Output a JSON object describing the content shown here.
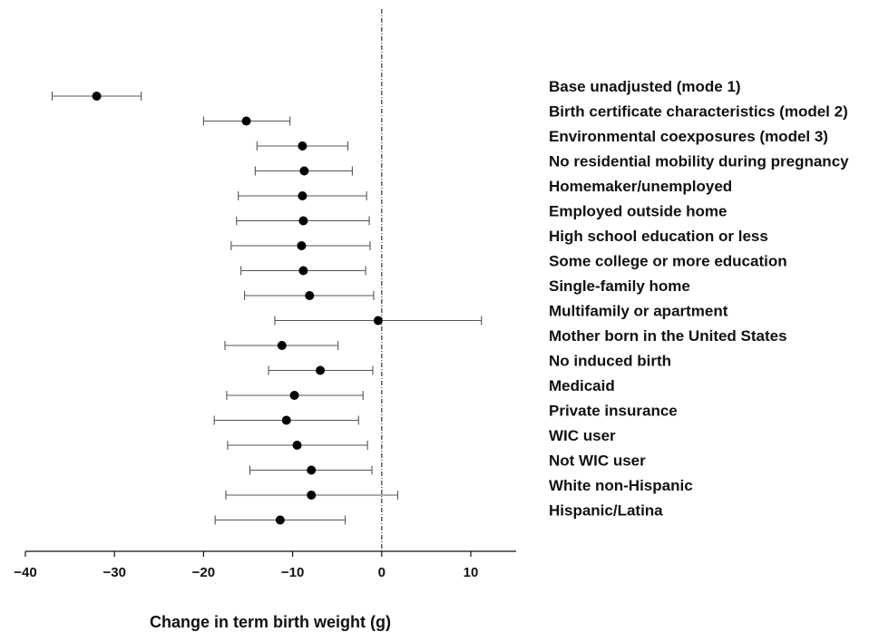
{
  "chart_data": {
    "type": "forest",
    "xlabel": "Change in term birth weight (g)",
    "xlim": [
      -40,
      15
    ],
    "xticks": [
      -40,
      -30,
      -20,
      -10,
      0,
      10
    ],
    "xtick_labels": [
      "−40",
      "−30",
      "−20",
      "−10",
      "0",
      "10"
    ],
    "reference_line": 0,
    "rows": [
      {
        "label": "Base unadjusted (mode 1)",
        "estimate": -32.0,
        "lower": -37.0,
        "upper": -27.0
      },
      {
        "label": "Birth certificate characteristics (model 2)",
        "estimate": -15.2,
        "lower": -20.0,
        "upper": -10.3
      },
      {
        "label": "Environmental coexposures (model 3)",
        "estimate": -8.9,
        "lower": -14.0,
        "upper": -3.8
      },
      {
        "label": "No residential mobility during pregnancy",
        "estimate": -8.7,
        "lower": -14.2,
        "upper": -3.3
      },
      {
        "label": "Homemaker/unemployed",
        "estimate": -8.9,
        "lower": -16.1,
        "upper": -1.7
      },
      {
        "label": "Employed outside home",
        "estimate": -8.8,
        "lower": -16.3,
        "upper": -1.4
      },
      {
        "label": "High school education or less",
        "estimate": -9.0,
        "lower": -16.9,
        "upper": -1.3
      },
      {
        "label": "Some college or more education",
        "estimate": -8.8,
        "lower": -15.8,
        "upper": -1.8
      },
      {
        "label": "Single-family home",
        "estimate": -8.1,
        "lower": -15.4,
        "upper": -0.9
      },
      {
        "label": "Multifamily or apartment",
        "estimate": -0.4,
        "lower": -12.0,
        "upper": 11.2
      },
      {
        "label": "Mother born in the United States",
        "estimate": -11.2,
        "lower": -17.6,
        "upper": -4.9
      },
      {
        "label": "No induced birth",
        "estimate": -6.9,
        "lower": -12.7,
        "upper": -1.0
      },
      {
        "label": "Medicaid",
        "estimate": -9.8,
        "lower": -17.4,
        "upper": -2.1
      },
      {
        "label": "Private insurance",
        "estimate": -10.7,
        "lower": -18.8,
        "upper": -2.6
      },
      {
        "label": "WIC user",
        "estimate": -9.5,
        "lower": -17.3,
        "upper": -1.6
      },
      {
        "label": "Not WIC user",
        "estimate": -7.9,
        "lower": -14.8,
        "upper": -1.1
      },
      {
        "label": "White non-Hispanic",
        "estimate": -7.9,
        "lower": -17.5,
        "upper": 1.8
      },
      {
        "label": "Hispanic/Latina",
        "estimate": -11.4,
        "lower": -18.7,
        "upper": -4.1
      }
    ]
  }
}
